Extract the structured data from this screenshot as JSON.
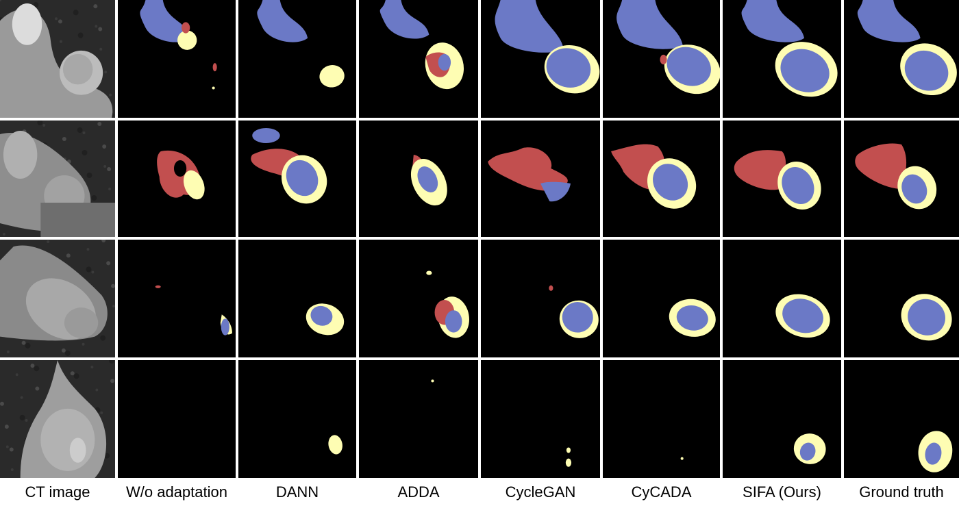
{
  "colors": {
    "blue": "#6b79c6",
    "red": "#c24f4f",
    "yellow": "#fefdb3",
    "background": "#000000",
    "divider": "#ffffff"
  },
  "columns": [
    {
      "key": "ct",
      "label": "CT image"
    },
    {
      "key": "woa",
      "label": "W/o adaptation"
    },
    {
      "key": "dann",
      "label": "DANN"
    },
    {
      "key": "adda",
      "label": "ADDA"
    },
    {
      "key": "cyclegan",
      "label": "CycleGAN"
    },
    {
      "key": "cycada",
      "label": "CyCADA"
    },
    {
      "key": "sifa",
      "label": "SIFA (Ours)"
    },
    {
      "key": "gt",
      "label": "Ground truth"
    }
  ],
  "rows": [
    1,
    2,
    3,
    4
  ]
}
